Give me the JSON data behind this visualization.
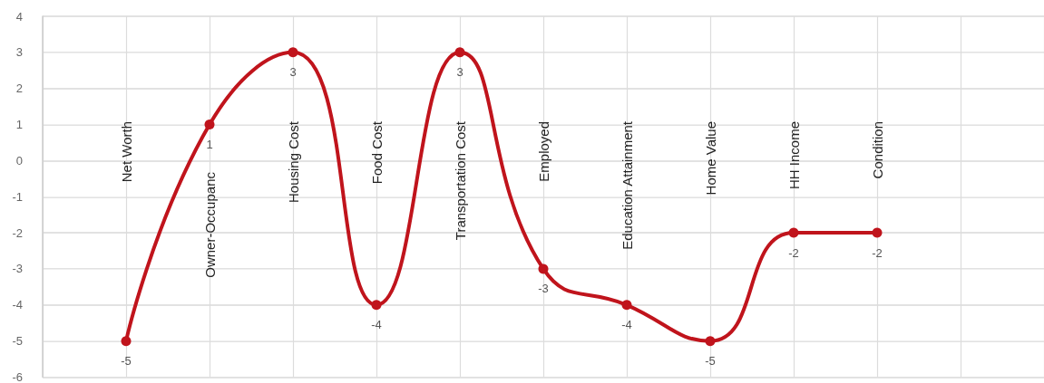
{
  "chart_data": {
    "type": "line",
    "categories": [
      null,
      "Net Worth",
      "Owner-Occupanc",
      "Housing Cost",
      "Food Cost",
      "Transportation Cost",
      "Employed",
      "Education Attainment",
      "Home Value",
      "HH Income",
      "Condition",
      null,
      null
    ],
    "series": [
      {
        "color": "#c0141c",
        "values": [
          null,
          -5,
          1,
          3,
          -4,
          3,
          -3,
          -4,
          -5,
          -2,
          -2,
          null,
          null
        ]
      }
    ],
    "ylim": [
      -6,
      4
    ],
    "yticks": [
      -6,
      -5,
      -4,
      -3,
      -2,
      -1,
      0,
      1,
      2,
      3,
      4
    ],
    "grid": true,
    "marker": "circle",
    "data_labels": true
  }
}
